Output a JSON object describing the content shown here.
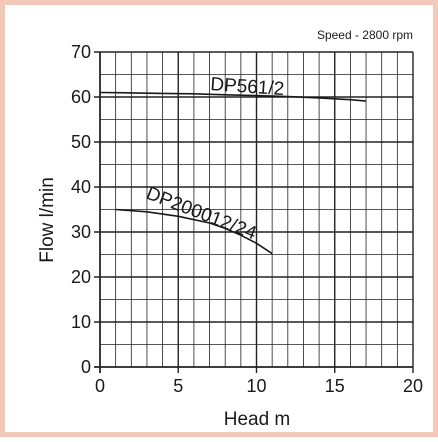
{
  "colors": {
    "border": "#f2c9b8",
    "grid": "#222222",
    "curve": "#1a1a1a",
    "background": "#ffffff"
  },
  "chart_data": {
    "type": "line",
    "note": "Speed - 2800 rpm",
    "xlabel": "Head m",
    "ylabel": "Flow l/min",
    "xlim": [
      0,
      20
    ],
    "ylim": [
      0,
      70
    ],
    "x_ticks": [
      0,
      5,
      10,
      15,
      20
    ],
    "y_ticks": [
      0,
      10,
      20,
      30,
      40,
      50,
      60,
      70
    ],
    "x_tick_labels": [
      "0",
      "5",
      "10",
      "15",
      "20"
    ],
    "y_tick_labels": [
      "0",
      "10",
      "20",
      "30",
      "40",
      "50",
      "60",
      "70"
    ],
    "grid": true,
    "minor_x_step": 1,
    "minor_y_step": 5,
    "series": [
      {
        "name": "DP561/2",
        "x": [
          0,
          2,
          4,
          6,
          8,
          10,
          12,
          14,
          16,
          17
        ],
        "y": [
          61,
          60.9,
          60.8,
          60.7,
          60.5,
          60.3,
          60.1,
          59.8,
          59.4,
          59.1
        ]
      },
      {
        "name": "DP200012/24",
        "x": [
          1,
          3,
          5,
          7,
          8,
          9,
          10,
          11
        ],
        "y": [
          35,
          34.5,
          33.5,
          32,
          30.8,
          29.3,
          27.5,
          25.2
        ]
      }
    ]
  }
}
